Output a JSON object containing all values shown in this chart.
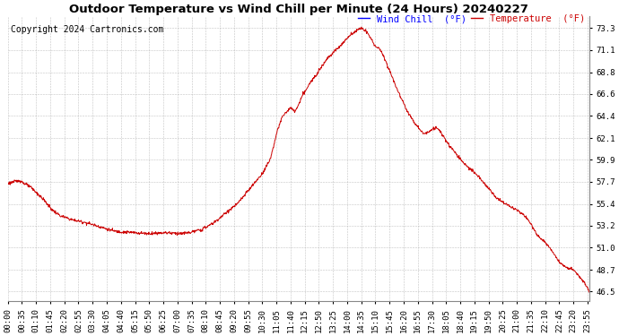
{
  "title": "Outdoor Temperature vs Wind Chill per Minute (24 Hours) 20240227",
  "copyright": "Copyright 2024 Cartronics.com",
  "legend_wind_chill": "Wind Chill  (°F)",
  "legend_temperature": "Temperature  (°F)",
  "line_color": "#cc0000",
  "wind_chill_color": "#0000ff",
  "temperature_color": "#cc0000",
  "background_color": "#ffffff",
  "grid_color": "#aaaaaa",
  "yticks": [
    46.5,
    48.7,
    51.0,
    53.2,
    55.4,
    57.7,
    59.9,
    62.1,
    64.4,
    66.6,
    68.8,
    71.1,
    73.3
  ],
  "ylim": [
    45.5,
    74.5
  ],
  "xtick_step_minutes": 35,
  "total_minutes": 1440,
  "title_fontsize": 9.5,
  "copyright_fontsize": 7,
  "legend_fontsize": 7.5,
  "tick_fontsize": 6.5,
  "fig_width": 6.9,
  "fig_height": 3.75,
  "dpi": 100,
  "curve_keypoints": [
    [
      0,
      57.5
    ],
    [
      30,
      57.8
    ],
    [
      60,
      57.0
    ],
    [
      90,
      55.8
    ],
    [
      110,
      54.8
    ],
    [
      130,
      54.2
    ],
    [
      160,
      53.8
    ],
    [
      195,
      53.5
    ],
    [
      220,
      53.2
    ],
    [
      250,
      52.8
    ],
    [
      270,
      52.6
    ],
    [
      310,
      52.5
    ],
    [
      350,
      52.4
    ],
    [
      390,
      52.5
    ],
    [
      430,
      52.4
    ],
    [
      450,
      52.5
    ],
    [
      480,
      52.8
    ],
    [
      510,
      53.5
    ],
    [
      540,
      54.5
    ],
    [
      570,
      55.5
    ],
    [
      600,
      57.0
    ],
    [
      630,
      58.5
    ],
    [
      650,
      60.0
    ],
    [
      665,
      62.5
    ],
    [
      675,
      63.8
    ],
    [
      680,
      64.3
    ],
    [
      690,
      64.8
    ],
    [
      700,
      65.2
    ],
    [
      710,
      64.8
    ],
    [
      720,
      65.5
    ],
    [
      730,
      66.5
    ],
    [
      750,
      67.8
    ],
    [
      770,
      69.0
    ],
    [
      790,
      70.2
    ],
    [
      810,
      71.0
    ],
    [
      830,
      71.8
    ],
    [
      845,
      72.5
    ],
    [
      860,
      73.0
    ],
    [
      875,
      73.3
    ],
    [
      885,
      73.1
    ],
    [
      895,
      72.5
    ],
    [
      905,
      71.8
    ],
    [
      910,
      71.5
    ],
    [
      920,
      71.2
    ],
    [
      930,
      70.5
    ],
    [
      950,
      68.5
    ],
    [
      970,
      66.5
    ],
    [
      990,
      64.8
    ],
    [
      1010,
      63.5
    ],
    [
      1030,
      62.5
    ],
    [
      1050,
      63.0
    ],
    [
      1060,
      63.2
    ],
    [
      1070,
      62.8
    ],
    [
      1080,
      62.2
    ],
    [
      1090,
      61.5
    ],
    [
      1110,
      60.5
    ],
    [
      1130,
      59.5
    ],
    [
      1150,
      58.8
    ],
    [
      1170,
      58.0
    ],
    [
      1190,
      57.0
    ],
    [
      1210,
      56.0
    ],
    [
      1230,
      55.5
    ],
    [
      1250,
      55.0
    ],
    [
      1260,
      54.8
    ],
    [
      1270,
      54.5
    ],
    [
      1285,
      54.0
    ],
    [
      1300,
      53.0
    ],
    [
      1315,
      52.0
    ],
    [
      1330,
      51.5
    ],
    [
      1350,
      50.5
    ],
    [
      1365,
      49.5
    ],
    [
      1380,
      49.0
    ],
    [
      1395,
      48.8
    ],
    [
      1405,
      48.5
    ],
    [
      1415,
      48.0
    ],
    [
      1425,
      47.5
    ],
    [
      1430,
      47.2
    ],
    [
      1435,
      46.8
    ],
    [
      1439,
      46.5
    ]
  ]
}
